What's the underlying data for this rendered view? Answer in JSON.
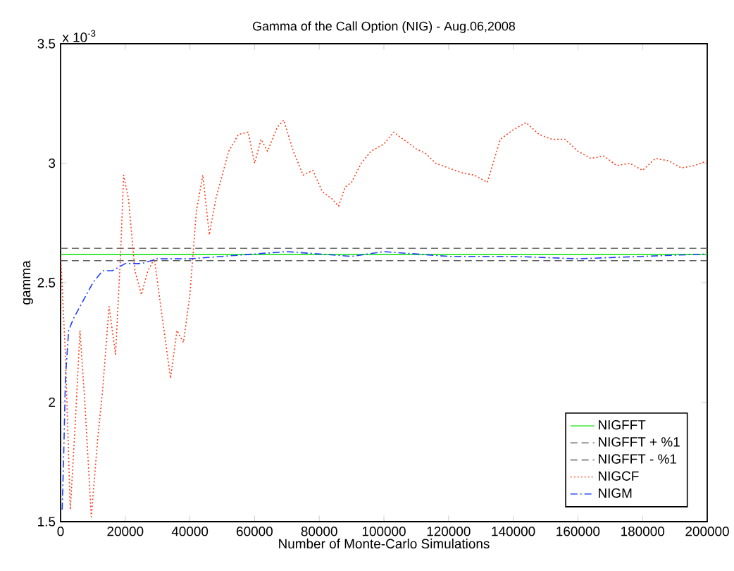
{
  "chart_data": {
    "type": "line",
    "title": "Gamma of the Call Option (NIG) - Aug.06,2008",
    "xlabel": "Number of Monte-Carlo Simulations",
    "ylabel": "gamma",
    "annotations": [
      "x 10$^{-3}$"
    ],
    "xlim": [
      0,
      200000
    ],
    "ylim": [
      1.5,
      3.5
    ],
    "xticks": [
      0,
      20000,
      40000,
      60000,
      80000,
      100000,
      120000,
      140000,
      160000,
      180000,
      200000
    ],
    "yticks": [
      1.5,
      2,
      2.5,
      3,
      3.5
    ],
    "grid": false,
    "legend": "bottom right",
    "marker": "none",
    "series": [
      {
        "name": "NIGFFT",
        "color": "#00e000",
        "line_style": "solid",
        "x": [
          0,
          200000
        ],
        "values": [
          2.618,
          2.618
        ]
      },
      {
        "name": "NIGFFT + %1",
        "color": "#707070",
        "line_style": "dashed",
        "x": [
          0,
          200000
        ],
        "values": [
          2.644,
          2.644
        ]
      },
      {
        "name": "NIGFFT - %1",
        "color": "#606060",
        "line_style": "dashed",
        "x": [
          0,
          200000
        ],
        "values": [
          2.592,
          2.592
        ]
      },
      {
        "name": "NIGCF",
        "color": "#ff3a1a",
        "line_style": "dotted",
        "x": [
          0,
          1500,
          3000,
          4500,
          6000,
          7500,
          9500,
          11500,
          13000,
          15000,
          17000,
          18500,
          19500,
          21000,
          23000,
          25000,
          27000,
          29000,
          31000,
          34000,
          36000,
          38000,
          40000,
          42000,
          44000,
          46000,
          48000,
          52000,
          55000,
          58000,
          60000,
          62000,
          64000,
          67000,
          69000,
          72000,
          75000,
          78000,
          81000,
          84000,
          86000,
          88000,
          90000,
          93000,
          96000,
          100000,
          103000,
          106000,
          110000,
          113000,
          116000,
          120000,
          124000,
          128000,
          132000,
          136000,
          140000,
          144000,
          148000,
          152000,
          156000,
          160000,
          164000,
          168000,
          172000,
          176000,
          180000,
          184000,
          188000,
          192000,
          196000,
          200000
        ],
        "values": [
          2.62,
          2.2,
          1.55,
          1.9,
          2.3,
          2.0,
          1.52,
          1.85,
          2.05,
          2.4,
          2.2,
          2.6,
          2.95,
          2.85,
          2.55,
          2.45,
          2.55,
          2.6,
          2.4,
          2.1,
          2.3,
          2.25,
          2.45,
          2.8,
          2.95,
          2.7,
          2.85,
          3.05,
          3.12,
          3.13,
          3.0,
          3.1,
          3.05,
          3.15,
          3.18,
          3.05,
          2.95,
          2.97,
          2.88,
          2.85,
          2.82,
          2.9,
          2.92,
          3.0,
          3.05,
          3.08,
          3.13,
          3.1,
          3.06,
          3.04,
          3.0,
          2.98,
          2.96,
          2.95,
          2.92,
          3.1,
          3.14,
          3.17,
          3.12,
          3.1,
          3.1,
          3.05,
          3.02,
          3.03,
          2.99,
          3.0,
          2.97,
          3.02,
          3.01,
          2.98,
          2.99,
          3.01
        ]
      },
      {
        "name": "NIGM",
        "color": "#2040ff",
        "line_style": "dashdot",
        "x": [
          500,
          1000,
          1500,
          2500,
          4000,
          6000,
          8000,
          10000,
          13000,
          16000,
          20000,
          25000,
          30000,
          40000,
          50000,
          60000,
          70000,
          80000,
          90000,
          100000,
          110000,
          120000,
          140000,
          160000,
          180000,
          200000
        ],
        "values": [
          1.55,
          1.8,
          2.1,
          2.3,
          2.35,
          2.4,
          2.45,
          2.5,
          2.55,
          2.55,
          2.58,
          2.58,
          2.6,
          2.6,
          2.61,
          2.62,
          2.63,
          2.62,
          2.61,
          2.63,
          2.62,
          2.61,
          2.61,
          2.6,
          2.61,
          2.62
        ]
      }
    ]
  }
}
